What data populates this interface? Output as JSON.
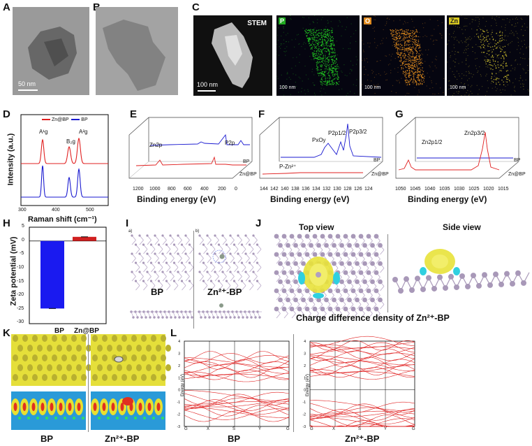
{
  "panels": {
    "A": {
      "letter": "A",
      "scalebar": "50 nm"
    },
    "B": {
      "letter": "B"
    },
    "C": {
      "letter": "C",
      "stem_label": "STEM",
      "scalebar": "100 nm",
      "maps": [
        {
          "tag": "P",
          "color": "#22bb22",
          "scalebar": "100 nm"
        },
        {
          "tag": "O",
          "color": "#e08a1e",
          "scalebar": "100 nm"
        },
        {
          "tag": "Zn",
          "color": "#e0d020",
          "scalebar": "100 nm"
        }
      ]
    },
    "D": {
      "letter": "D",
      "ylabel": "Intensity (a.u.)",
      "xlabel": "Raman shift (cm⁻¹)",
      "legend": [
        {
          "name": "Zn@BP",
          "color": "#e02020"
        },
        {
          "name": "BP",
          "color": "#1a1ad0"
        }
      ],
      "peaks": [
        "A¹g",
        "B₂g",
        "A²g"
      ],
      "xticks": [
        "300",
        "400",
        "500"
      ]
    },
    "E": {
      "letter": "E",
      "xlabel": "Binding energy (eV)",
      "xticks": [
        "1200",
        "1000",
        "800",
        "600",
        "400",
        "200",
        "0"
      ],
      "labels": [
        "Zn2p",
        "P2p",
        "BP",
        "Zn@BP"
      ]
    },
    "F": {
      "letter": "F",
      "xlabel": "Binding energy (eV)",
      "xticks": [
        "144",
        "142",
        "140",
        "138",
        "136",
        "134",
        "132",
        "130",
        "128",
        "126",
        "124"
      ],
      "labels": [
        "PxOy",
        "P2p1/2",
        "P2p3/2",
        "P-Zn²⁺",
        "BP",
        "Zn@BP"
      ]
    },
    "G": {
      "letter": "G",
      "xlabel": "Binding energy (eV)",
      "xticks": [
        "1050",
        "1045",
        "1040",
        "1035",
        "1030",
        "1025",
        "1020",
        "1015"
      ],
      "labels": [
        "Zn2p1/2",
        "Zn2p3/2",
        "BP",
        "Zn@BP"
      ]
    },
    "H": {
      "letter": "H",
      "ylabel": "Zeta potential (mV)",
      "yticks": [
        "5",
        "0",
        "-5",
        "-10",
        "-15",
        "-20",
        "-25",
        "-30"
      ],
      "categories": [
        "BP",
        "Zn@BP"
      ],
      "values": [
        -24.5,
        1.5
      ],
      "colors": [
        "#1a1af0",
        "#d02020"
      ]
    },
    "I": {
      "letter": "I",
      "sub_a": "a)",
      "sub_b": "b)",
      "left_label": "BP",
      "right_label": "Zn²⁺-BP"
    },
    "J": {
      "letter": "J",
      "top_view": "Top view",
      "side_view": "Side view",
      "caption": "Charge difference density of Zn²⁺-BP"
    },
    "K": {
      "letter": "K",
      "left_label": "BP",
      "right_label": "Zn²⁺-BP"
    },
    "L": {
      "letter": "L",
      "left_label": "BP",
      "right_label": "Zn²⁺-BP",
      "ylabel": "Energy (eV)",
      "kpoints": [
        "G",
        "X",
        "S",
        "Y",
        "G"
      ],
      "yticks": [
        "4",
        "3",
        "2",
        "1",
        "0",
        "-1",
        "-2",
        "-3"
      ]
    }
  },
  "chart_data": [
    {
      "type": "line",
      "panel": "D",
      "xlabel": "Raman shift (cm⁻¹)",
      "ylabel": "Intensity (a.u.)",
      "xlim": [
        300,
        550
      ],
      "series": [
        {
          "name": "Zn@BP",
          "peaks_x": [
            362,
            438,
            466
          ]
        },
        {
          "name": "BP",
          "peaks_x": [
            362,
            438,
            466
          ]
        }
      ]
    },
    {
      "type": "bar",
      "panel": "H",
      "categories": [
        "BP",
        "Zn@BP"
      ],
      "values": [
        -24.5,
        1.5
      ],
      "ylabel": "Zeta potential (mV)",
      "ylim": [
        -30,
        5
      ]
    }
  ]
}
